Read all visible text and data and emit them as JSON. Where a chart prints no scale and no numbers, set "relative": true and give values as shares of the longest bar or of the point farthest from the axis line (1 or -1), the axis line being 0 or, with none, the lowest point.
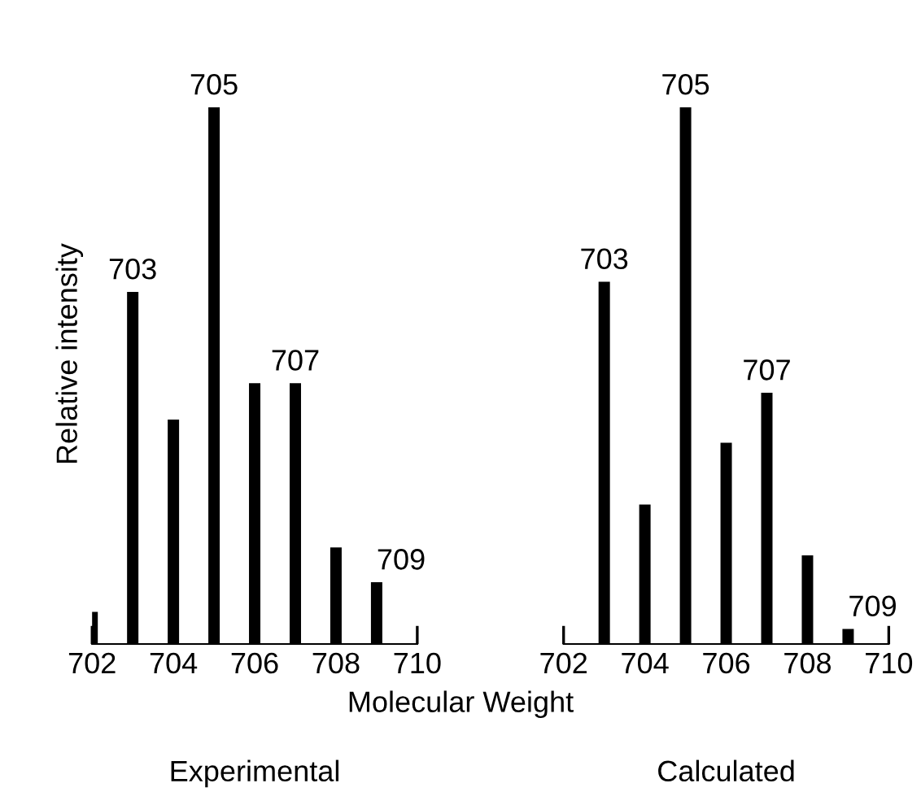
{
  "chart_data": [
    {
      "type": "bar",
      "title": "Experimental",
      "xlabel": "Molecular Weight",
      "ylabel": "Relative intensity",
      "relative": true,
      "x": [
        702,
        703,
        704,
        705,
        706,
        707,
        708,
        709
      ],
      "values": [
        0.06,
        0.656,
        0.418,
        1,
        0.486,
        0.486,
        0.18,
        0.115
      ],
      "color": "#000000",
      "xlim": [
        702,
        710
      ],
      "xticks": [
        702,
        704,
        706,
        708,
        710
      ],
      "grid": false,
      "annotations": [
        {
          "text": "703",
          "x": 703,
          "y": 0.656
        },
        {
          "text": "705",
          "x": 705,
          "y": 1
        },
        {
          "text": "707",
          "x": 707,
          "y": 0.486
        },
        {
          "text": "709",
          "x": 709,
          "y": 0.115
        }
      ]
    },
    {
      "type": "bar",
      "title": "Calculated",
      "relative": true,
      "x": [
        703,
        704,
        705,
        706,
        707,
        708,
        709
      ],
      "values": [
        0.675,
        0.26,
        1,
        0.375,
        0.468,
        0.165,
        0.028
      ],
      "color": "#000000",
      "xlim": [
        702,
        710
      ],
      "xticks": [
        702,
        704,
        706,
        708,
        710
      ],
      "grid": false,
      "annotations": [
        {
          "text": "703",
          "x": 703,
          "y": 0.675
        },
        {
          "text": "705",
          "x": 705,
          "y": 1
        },
        {
          "text": "707",
          "x": 707,
          "y": 0.468
        },
        {
          "text": "709",
          "x": 709,
          "y": 0.028
        }
      ]
    }
  ]
}
